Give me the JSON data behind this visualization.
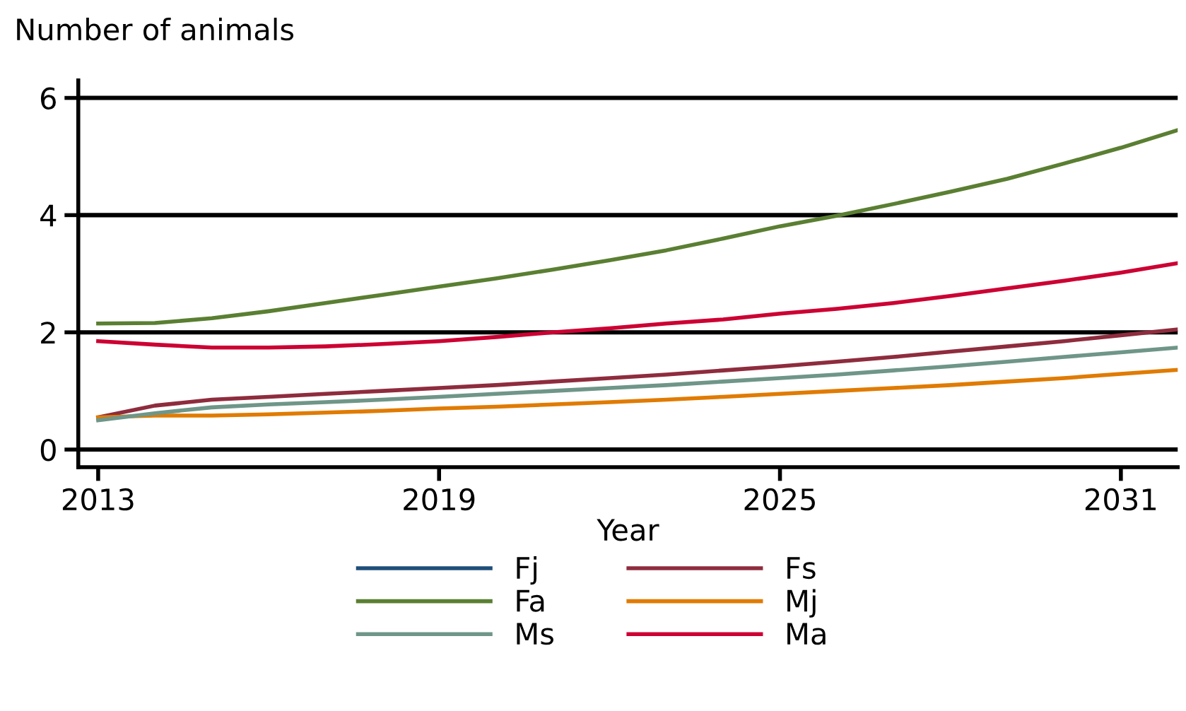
{
  "chart_data": {
    "type": "line",
    "ylabel": "Number of animals",
    "xlabel": "Year",
    "x": [
      2013,
      2014,
      2015,
      2016,
      2017,
      2018,
      2019,
      2020,
      2021,
      2022,
      2023,
      2024,
      2025,
      2026,
      2027,
      2028,
      2029,
      2030,
      2031,
      2032
    ],
    "series": [
      {
        "name": "Fj",
        "color": "#1f4e79",
        "values": [
          null,
          null,
          null,
          null,
          null,
          null,
          null,
          null,
          null,
          null,
          null,
          null,
          null,
          null,
          null,
          null,
          null,
          null,
          null,
          null
        ]
      },
      {
        "name": "Fs",
        "color": "#8e2c3d",
        "values": [
          0.55,
          0.75,
          0.85,
          0.9,
          0.95,
          1.0,
          1.05,
          1.1,
          1.16,
          1.22,
          1.28,
          1.35,
          1.42,
          1.5,
          1.58,
          1.67,
          1.76,
          1.85,
          1.95,
          2.05
        ]
      },
      {
        "name": "Fa",
        "color": "#5a7f32",
        "values": [
          2.15,
          2.16,
          2.24,
          2.36,
          2.5,
          2.64,
          2.78,
          2.92,
          3.07,
          3.23,
          3.4,
          3.6,
          3.81,
          3.99,
          4.19,
          4.4,
          4.62,
          4.88,
          5.15,
          5.45
        ]
      },
      {
        "name": "Mj",
        "color": "#e07b00",
        "values": [
          0.55,
          0.58,
          0.58,
          0.6,
          0.63,
          0.66,
          0.7,
          0.73,
          0.77,
          0.81,
          0.85,
          0.9,
          0.95,
          1.0,
          1.05,
          1.1,
          1.16,
          1.22,
          1.29,
          1.36
        ]
      },
      {
        "name": "Ms",
        "color": "#6f9688",
        "values": [
          0.5,
          0.62,
          0.72,
          0.77,
          0.81,
          0.85,
          0.9,
          0.95,
          1.0,
          1.05,
          1.1,
          1.16,
          1.22,
          1.28,
          1.35,
          1.42,
          1.5,
          1.58,
          1.66,
          1.74
        ]
      },
      {
        "name": "Ma",
        "color": "#cc0033",
        "values": [
          1.85,
          1.79,
          1.74,
          1.74,
          1.76,
          1.8,
          1.85,
          1.92,
          2.0,
          2.07,
          2.15,
          2.22,
          2.32,
          2.4,
          2.5,
          2.62,
          2.75,
          2.88,
          3.02,
          3.18
        ]
      }
    ],
    "xlim": [
      2012.65,
      2032
    ],
    "xticks": [
      2013,
      2019,
      2025,
      2031
    ],
    "ylim": [
      -0.3,
      6.3
    ],
    "yticks": [
      0,
      2,
      4,
      6
    ],
    "grid": "y",
    "legend": "bottom",
    "line_style": "solid"
  }
}
